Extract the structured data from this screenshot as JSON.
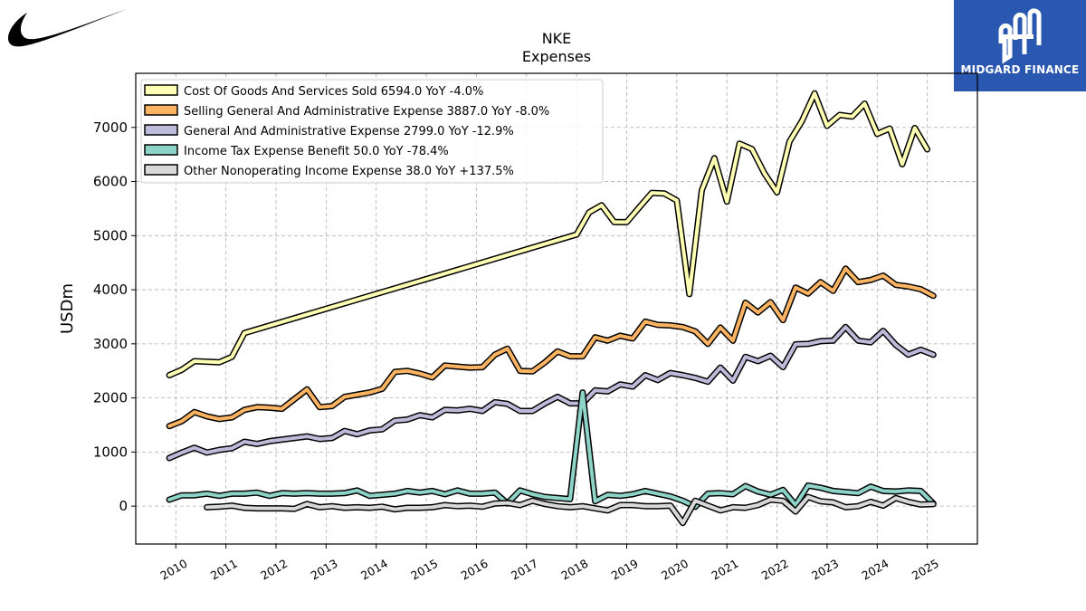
{
  "logos": {
    "left_icon": "nike-swoosh-icon",
    "right_brand": "MIDGARD FINANCE",
    "right_icon": "midgard-finance-logo-icon"
  },
  "chart_data": {
    "type": "line",
    "title": "NKE",
    "subtitle": "Expenses",
    "xlabel": "",
    "ylabel": "USDm",
    "ylim": [
      -700,
      8000
    ],
    "xlim": [
      2009.2,
      2026.0
    ],
    "yticks": [
      0,
      1000,
      2000,
      3000,
      4000,
      5000,
      6000,
      7000
    ],
    "xticks": [
      "2010",
      "2011",
      "2012",
      "2013",
      "2014",
      "2015",
      "2016",
      "2017",
      "2018",
      "2019",
      "2020",
      "2021",
      "2022",
      "2023",
      "2024",
      "2025"
    ],
    "grid": true,
    "legend_position": "top-left",
    "series": [
      {
        "name": "Cost Of Goods And Services Sold  6594.0 YoY -4.0%",
        "color": "#ffffb3",
        "points": [
          [
            2009.87,
            2420
          ],
          [
            2010.12,
            2520
          ],
          [
            2010.37,
            2680
          ],
          [
            2010.62,
            2670
          ],
          [
            2010.87,
            2660
          ],
          [
            2011.12,
            2760
          ],
          [
            2011.37,
            3200
          ],
          [
            2018.0,
            5020
          ],
          [
            2018.25,
            5430
          ],
          [
            2018.5,
            5560
          ],
          [
            2018.75,
            5250
          ],
          [
            2019.0,
            5250
          ],
          [
            2019.25,
            5520
          ],
          [
            2019.5,
            5790
          ],
          [
            2019.75,
            5780
          ],
          [
            2020.0,
            5650
          ],
          [
            2020.25,
            3920
          ],
          [
            2020.5,
            5840
          ],
          [
            2020.75,
            6430
          ],
          [
            2021.0,
            5630
          ],
          [
            2021.25,
            6700
          ],
          [
            2021.5,
            6600
          ],
          [
            2021.75,
            6150
          ],
          [
            2022.0,
            5800
          ],
          [
            2022.25,
            6740
          ],
          [
            2022.5,
            7120
          ],
          [
            2022.75,
            7630
          ],
          [
            2023.0,
            7030
          ],
          [
            2023.25,
            7230
          ],
          [
            2023.5,
            7200
          ],
          [
            2023.75,
            7440
          ],
          [
            2024.0,
            6880
          ],
          [
            2024.25,
            6980
          ],
          [
            2024.5,
            6320
          ],
          [
            2024.75,
            6990
          ],
          [
            2025.0,
            6594
          ]
        ]
      },
      {
        "name": "Selling General And Administrative Expense  3887.0 YoY -8.0%",
        "color": "#fdb462",
        "points": [
          [
            2009.87,
            1480
          ],
          [
            2010.12,
            1570
          ],
          [
            2010.37,
            1740
          ],
          [
            2010.62,
            1660
          ],
          [
            2010.87,
            1610
          ],
          [
            2011.12,
            1640
          ],
          [
            2011.37,
            1780
          ],
          [
            2011.62,
            1830
          ],
          [
            2011.87,
            1820
          ],
          [
            2012.12,
            1800
          ],
          [
            2012.37,
            1980
          ],
          [
            2012.62,
            2160
          ],
          [
            2012.87,
            1830
          ],
          [
            2013.12,
            1850
          ],
          [
            2013.37,
            2020
          ],
          [
            2013.62,
            2060
          ],
          [
            2013.87,
            2100
          ],
          [
            2014.12,
            2170
          ],
          [
            2014.37,
            2480
          ],
          [
            2014.62,
            2500
          ],
          [
            2014.87,
            2450
          ],
          [
            2015.12,
            2380
          ],
          [
            2015.37,
            2600
          ],
          [
            2015.62,
            2580
          ],
          [
            2015.87,
            2560
          ],
          [
            2016.12,
            2570
          ],
          [
            2016.37,
            2800
          ],
          [
            2016.62,
            2910
          ],
          [
            2016.87,
            2500
          ],
          [
            2017.12,
            2490
          ],
          [
            2017.37,
            2660
          ],
          [
            2017.62,
            2860
          ],
          [
            2017.87,
            2770
          ],
          [
            2018.12,
            2770
          ],
          [
            2018.37,
            3120
          ],
          [
            2018.62,
            3060
          ],
          [
            2018.87,
            3150
          ],
          [
            2019.12,
            3100
          ],
          [
            2019.37,
            3410
          ],
          [
            2019.62,
            3350
          ],
          [
            2019.87,
            3340
          ],
          [
            2020.12,
            3310
          ],
          [
            2020.37,
            3230
          ],
          [
            2020.62,
            3000
          ],
          [
            2020.87,
            3300
          ],
          [
            2021.12,
            3060
          ],
          [
            2021.37,
            3760
          ],
          [
            2021.62,
            3580
          ],
          [
            2021.87,
            3770
          ],
          [
            2022.12,
            3440
          ],
          [
            2022.37,
            4040
          ],
          [
            2022.62,
            3930
          ],
          [
            2022.87,
            4140
          ],
          [
            2023.12,
            3980
          ],
          [
            2023.37,
            4390
          ],
          [
            2023.62,
            4140
          ],
          [
            2023.87,
            4180
          ],
          [
            2024.12,
            4260
          ],
          [
            2024.37,
            4090
          ],
          [
            2024.62,
            4060
          ],
          [
            2024.87,
            4010
          ],
          [
            2025.12,
            3887
          ]
        ]
      },
      {
        "name": "General And Administrative Expense  2799.0 YoY -12.9%",
        "color": "#bebada",
        "points": [
          [
            2009.87,
            890
          ],
          [
            2010.12,
            990
          ],
          [
            2010.37,
            1080
          ],
          [
            2010.62,
            990
          ],
          [
            2010.87,
            1040
          ],
          [
            2011.12,
            1070
          ],
          [
            2011.37,
            1190
          ],
          [
            2011.62,
            1150
          ],
          [
            2011.87,
            1200
          ],
          [
            2012.12,
            1230
          ],
          [
            2012.37,
            1260
          ],
          [
            2012.62,
            1290
          ],
          [
            2012.87,
            1240
          ],
          [
            2013.12,
            1260
          ],
          [
            2013.37,
            1390
          ],
          [
            2013.62,
            1330
          ],
          [
            2013.87,
            1400
          ],
          [
            2014.12,
            1420
          ],
          [
            2014.37,
            1580
          ],
          [
            2014.62,
            1600
          ],
          [
            2014.87,
            1680
          ],
          [
            2015.12,
            1640
          ],
          [
            2015.37,
            1780
          ],
          [
            2015.62,
            1770
          ],
          [
            2015.87,
            1800
          ],
          [
            2016.12,
            1760
          ],
          [
            2016.37,
            1920
          ],
          [
            2016.62,
            1890
          ],
          [
            2016.87,
            1760
          ],
          [
            2017.12,
            1760
          ],
          [
            2017.37,
            1900
          ],
          [
            2017.62,
            2020
          ],
          [
            2017.87,
            1900
          ],
          [
            2018.12,
            1900
          ],
          [
            2018.37,
            2140
          ],
          [
            2018.62,
            2120
          ],
          [
            2018.87,
            2250
          ],
          [
            2019.12,
            2210
          ],
          [
            2019.37,
            2420
          ],
          [
            2019.62,
            2330
          ],
          [
            2019.87,
            2460
          ],
          [
            2020.12,
            2420
          ],
          [
            2020.37,
            2370
          ],
          [
            2020.62,
            2300
          ],
          [
            2020.87,
            2560
          ],
          [
            2021.12,
            2320
          ],
          [
            2021.37,
            2760
          ],
          [
            2021.62,
            2680
          ],
          [
            2021.87,
            2780
          ],
          [
            2022.12,
            2570
          ],
          [
            2022.37,
            2990
          ],
          [
            2022.62,
            3000
          ],
          [
            2022.87,
            3050
          ],
          [
            2023.12,
            3060
          ],
          [
            2023.37,
            3310
          ],
          [
            2023.62,
            3060
          ],
          [
            2023.87,
            3030
          ],
          [
            2024.12,
            3240
          ],
          [
            2024.37,
            2980
          ],
          [
            2024.62,
            2800
          ],
          [
            2024.87,
            2890
          ],
          [
            2025.12,
            2799
          ]
        ]
      },
      {
        "name": "Income Tax Expense Benefit  50.0 YoY -78.4%",
        "color": "#8dd3c7",
        "points": [
          [
            2009.87,
            120
          ],
          [
            2010.12,
            200
          ],
          [
            2010.37,
            200
          ],
          [
            2010.62,
            230
          ],
          [
            2010.87,
            190
          ],
          [
            2011.12,
            230
          ],
          [
            2011.37,
            230
          ],
          [
            2011.62,
            250
          ],
          [
            2011.87,
            190
          ],
          [
            2012.12,
            240
          ],
          [
            2012.37,
            230
          ],
          [
            2012.62,
            240
          ],
          [
            2012.87,
            230
          ],
          [
            2013.12,
            230
          ],
          [
            2013.37,
            240
          ],
          [
            2013.62,
            290
          ],
          [
            2013.87,
            190
          ],
          [
            2014.12,
            210
          ],
          [
            2014.37,
            230
          ],
          [
            2014.62,
            280
          ],
          [
            2014.87,
            250
          ],
          [
            2015.12,
            280
          ],
          [
            2015.37,
            220
          ],
          [
            2015.62,
            290
          ],
          [
            2015.87,
            230
          ],
          [
            2016.12,
            230
          ],
          [
            2016.37,
            250
          ],
          [
            2016.62,
            50
          ],
          [
            2016.87,
            290
          ],
          [
            2017.12,
            220
          ],
          [
            2017.37,
            170
          ],
          [
            2017.62,
            150
          ],
          [
            2017.87,
            130
          ],
          [
            2018.12,
            2100
          ],
          [
            2018.37,
            90
          ],
          [
            2018.62,
            210
          ],
          [
            2018.87,
            190
          ],
          [
            2019.12,
            220
          ],
          [
            2019.37,
            280
          ],
          [
            2019.62,
            230
          ],
          [
            2019.87,
            180
          ],
          [
            2020.12,
            100
          ],
          [
            2020.37,
            -10
          ],
          [
            2020.62,
            230
          ],
          [
            2020.87,
            240
          ],
          [
            2021.12,
            220
          ],
          [
            2021.37,
            370
          ],
          [
            2021.62,
            270
          ],
          [
            2021.87,
            210
          ],
          [
            2022.12,
            300
          ],
          [
            2022.37,
            20
          ],
          [
            2022.62,
            380
          ],
          [
            2022.87,
            340
          ],
          [
            2023.12,
            280
          ],
          [
            2023.37,
            260
          ],
          [
            2023.62,
            240
          ],
          [
            2023.87,
            360
          ],
          [
            2024.12,
            280
          ],
          [
            2024.37,
            270
          ],
          [
            2024.62,
            290
          ],
          [
            2024.87,
            280
          ],
          [
            2025.12,
            50
          ]
        ]
      },
      {
        "name": "Other Nonoperating Income Expense  38.0 YoY +137.5%",
        "color": "#d9d9d9",
        "points": [
          [
            2010.62,
            -20
          ],
          [
            2010.87,
            -10
          ],
          [
            2011.12,
            10
          ],
          [
            2011.37,
            -30
          ],
          [
            2011.62,
            -40
          ],
          [
            2011.87,
            -40
          ],
          [
            2012.12,
            -40
          ],
          [
            2012.37,
            -50
          ],
          [
            2012.62,
            40
          ],
          [
            2012.87,
            -20
          ],
          [
            2013.12,
            0
          ],
          [
            2013.37,
            -30
          ],
          [
            2013.62,
            -20
          ],
          [
            2013.87,
            -30
          ],
          [
            2014.12,
            -10
          ],
          [
            2014.37,
            -60
          ],
          [
            2014.62,
            -30
          ],
          [
            2014.87,
            -30
          ],
          [
            2015.12,
            -20
          ],
          [
            2015.37,
            20
          ],
          [
            2015.62,
            0
          ],
          [
            2015.87,
            10
          ],
          [
            2016.12,
            -10
          ],
          [
            2016.37,
            50
          ],
          [
            2016.62,
            60
          ],
          [
            2016.87,
            20
          ],
          [
            2017.12,
            100
          ],
          [
            2017.37,
            40
          ],
          [
            2017.62,
            0
          ],
          [
            2017.87,
            -20
          ],
          [
            2018.12,
            0
          ],
          [
            2018.37,
            -40
          ],
          [
            2018.62,
            -80
          ],
          [
            2018.87,
            20
          ],
          [
            2019.12,
            20
          ],
          [
            2019.37,
            0
          ],
          [
            2019.62,
            0
          ],
          [
            2019.87,
            10
          ],
          [
            2020.12,
            -310
          ],
          [
            2020.37,
            100
          ],
          [
            2020.62,
            10
          ],
          [
            2020.87,
            -80
          ],
          [
            2021.12,
            -20
          ],
          [
            2021.37,
            -30
          ],
          [
            2021.62,
            20
          ],
          [
            2021.87,
            120
          ],
          [
            2022.12,
            100
          ],
          [
            2022.37,
            -100
          ],
          [
            2022.62,
            170
          ],
          [
            2022.87,
            90
          ],
          [
            2023.12,
            70
          ],
          [
            2023.37,
            -20
          ],
          [
            2023.62,
            0
          ],
          [
            2023.87,
            80
          ],
          [
            2024.12,
            10
          ],
          [
            2024.37,
            150
          ],
          [
            2024.62,
            80
          ],
          [
            2024.87,
            30
          ],
          [
            2025.12,
            38
          ]
        ]
      }
    ]
  }
}
